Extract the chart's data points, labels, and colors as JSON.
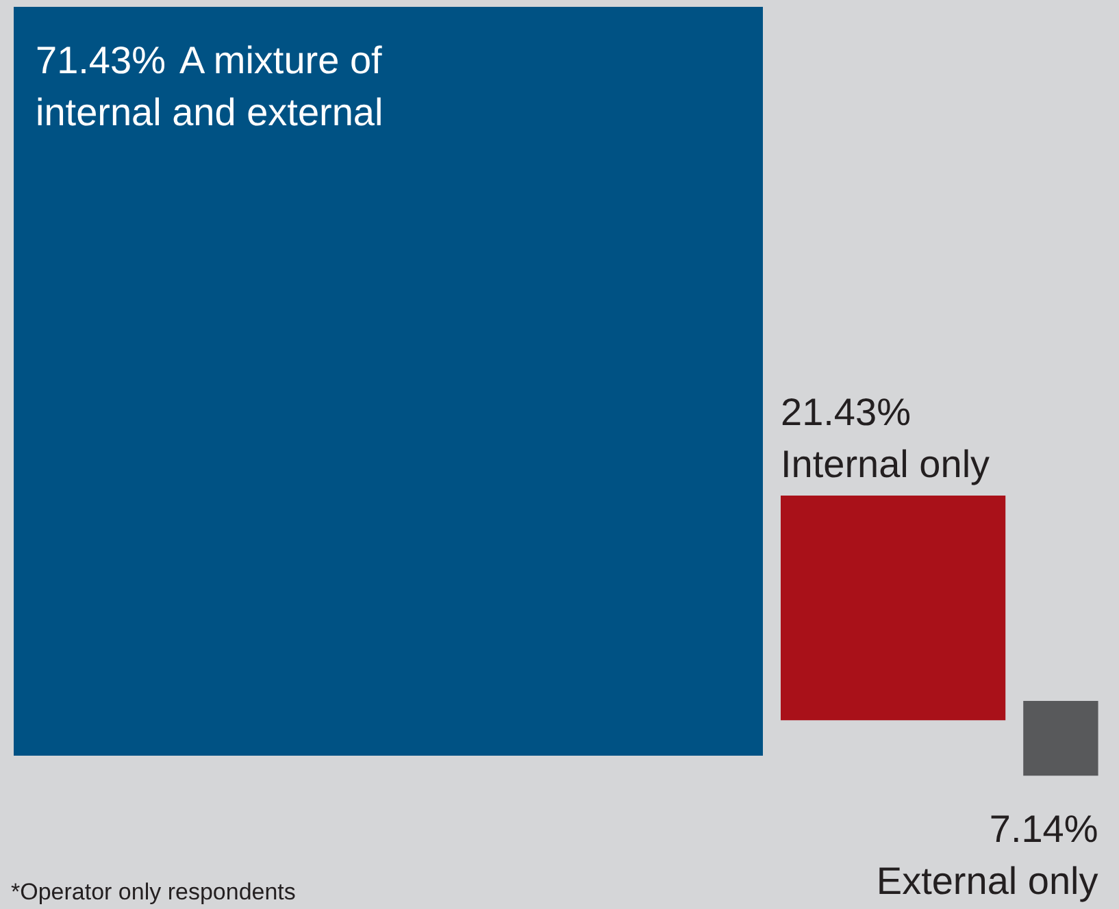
{
  "chart_data": {
    "type": "other",
    "categories": [
      "A mixture of internal and external",
      "Internal only",
      "External only"
    ],
    "values": [
      71.43,
      21.43,
      7.14
    ],
    "value_labels": [
      "71.43%",
      "21.43%",
      "7.14%"
    ],
    "colors": [
      "#005284",
      "#a91119",
      "#58595b"
    ],
    "annotations": [
      "*Operator only respondents"
    ]
  }
}
